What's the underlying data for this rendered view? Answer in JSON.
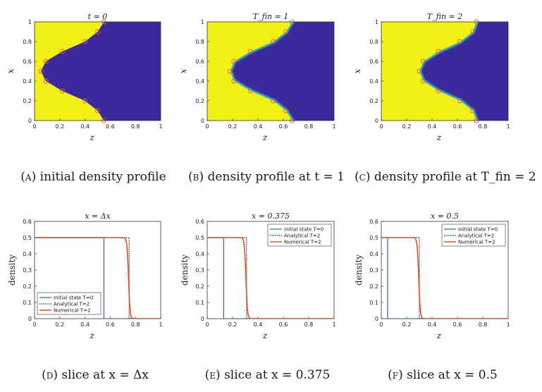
{
  "colors": {
    "yellow": "#f2f016",
    "blue": "#3a2a9c",
    "teal": "#2ec3c8",
    "circle": "#e05a5a",
    "initial": "#1a6fb3",
    "analytical": "#111111",
    "numerical": "#d9531b"
  },
  "captions": [
    {
      "label": "(a)",
      "text": "initial density profile"
    },
    {
      "label": "(b)",
      "text": "density profile at t = 1"
    },
    {
      "label": "(c)",
      "text": "density profile at T_fin = 2"
    },
    {
      "label": "(d)",
      "text": "slice at x = Δx"
    },
    {
      "label": "(e)",
      "text": "slice at x = 0.375"
    },
    {
      "label": "(f)",
      "text": "slice at x = 0.5"
    }
  ],
  "chart_data": [
    {
      "type": "heatmap",
      "title": "t = 0",
      "xlabel": "z",
      "ylabel": "x",
      "xlim": [
        0,
        1
      ],
      "ylim": [
        0,
        1
      ],
      "xticks": [
        "0",
        "0.2",
        "0.4",
        "0.6",
        "0.8",
        "1"
      ],
      "yticks": [
        "0",
        "0.2",
        "0.4",
        "0.6",
        "0.8",
        "1"
      ],
      "interface_shift": 0,
      "smooth": false,
      "interface_points": [
        [
          0.55,
          0
        ],
        [
          0.5,
          0.1
        ],
        [
          0.4,
          0.2
        ],
        [
          0.22,
          0.3
        ],
        [
          0.09,
          0.4
        ],
        [
          0.05,
          0.5
        ],
        [
          0.09,
          0.6
        ],
        [
          0.22,
          0.7
        ],
        [
          0.4,
          0.8
        ],
        [
          0.5,
          0.9
        ],
        [
          0.55,
          1
        ]
      ]
    },
    {
      "type": "heatmap",
      "title": "T_fin = 1",
      "xlabel": "z",
      "ylabel": "x",
      "xlim": [
        0,
        1
      ],
      "ylim": [
        0,
        1
      ],
      "xticks": [
        "0",
        "0.2",
        "0.4",
        "0.6",
        "0.8",
        "1"
      ],
      "yticks": [
        "0",
        "0.2",
        "0.4",
        "0.6",
        "0.8",
        "1"
      ],
      "interface_shift": 0.12,
      "smooth": true,
      "interface_points": [
        [
          0.67,
          0
        ],
        [
          0.62,
          0.1
        ],
        [
          0.52,
          0.2
        ],
        [
          0.34,
          0.3
        ],
        [
          0.21,
          0.4
        ],
        [
          0.18,
          0.5
        ],
        [
          0.21,
          0.6
        ],
        [
          0.34,
          0.7
        ],
        [
          0.52,
          0.8
        ],
        [
          0.62,
          0.9
        ],
        [
          0.67,
          1
        ]
      ]
    },
    {
      "type": "heatmap",
      "title": "T_fin = 2",
      "xlabel": "z",
      "ylabel": "x",
      "xlim": [
        0,
        1
      ],
      "ylim": [
        0,
        1
      ],
      "xticks": [
        "0",
        "0.2",
        "0.4",
        "0.6",
        "0.8",
        "1"
      ],
      "yticks": [
        "0",
        "0.2",
        "0.4",
        "0.6",
        "0.8",
        "1"
      ],
      "interface_shift": 0.25,
      "smooth": true,
      "interface_points": [
        [
          0.75,
          0
        ],
        [
          0.72,
          0.1
        ],
        [
          0.62,
          0.2
        ],
        [
          0.45,
          0.3
        ],
        [
          0.33,
          0.4
        ],
        [
          0.3,
          0.5
        ],
        [
          0.33,
          0.6
        ],
        [
          0.45,
          0.7
        ],
        [
          0.62,
          0.8
        ],
        [
          0.72,
          0.9
        ],
        [
          0.75,
          1
        ]
      ]
    },
    {
      "type": "line",
      "title": "x = Δx",
      "xlabel": "z",
      "ylabel": "density",
      "xlim": [
        0,
        1
      ],
      "ylim": [
        0,
        0.6
      ],
      "xticks": [
        "0",
        "0.2",
        "0.4",
        "0.6",
        "0.8",
        "1"
      ],
      "yticks": [
        "0",
        "0.1",
        "0.2",
        "0.3",
        "0.4",
        "0.5",
        "0.6"
      ],
      "legend": "bottom-left",
      "series": [
        {
          "name": "Initial state T=0",
          "step_at": 0.55,
          "style": "solid",
          "color": "initial"
        },
        {
          "name": "Analytical T=2",
          "step_at": 0.75,
          "style": "dotted",
          "color": "analytical"
        },
        {
          "name": "Numerical T=2",
          "step_at": 0.745,
          "style": "smooth",
          "color": "numerical"
        }
      ]
    },
    {
      "type": "line",
      "title": "x = 0.375",
      "xlabel": "z",
      "ylabel": "density",
      "xlim": [
        0,
        1
      ],
      "ylim": [
        0,
        0.6
      ],
      "xticks": [
        "0",
        "0.2",
        "0.4",
        "0.6",
        "0.8",
        "1"
      ],
      "yticks": [
        "0",
        "0.1",
        "0.2",
        "0.3",
        "0.4",
        "0.5",
        "0.6"
      ],
      "legend": "top-right",
      "series": [
        {
          "name": "Initial state T=0",
          "step_at": 0.13,
          "style": "solid",
          "color": "initial"
        },
        {
          "name": "Analytical T=2",
          "step_at": 0.31,
          "style": "dotted",
          "color": "analytical"
        },
        {
          "name": "Numerical T=2",
          "step_at": 0.305,
          "style": "smooth",
          "color": "numerical"
        }
      ]
    },
    {
      "type": "line",
      "title": "x = 0.5",
      "xlabel": "z",
      "ylabel": "density",
      "xlim": [
        0,
        1
      ],
      "ylim": [
        0,
        0.6
      ],
      "xticks": [
        "0",
        "0.2",
        "0.4",
        "0.6",
        "0.8",
        "1"
      ],
      "yticks": [
        "0",
        "0.1",
        "0.2",
        "0.3",
        "0.4",
        "0.5",
        "0.6"
      ],
      "legend": "top-right",
      "series": [
        {
          "name": "Initial state T=0",
          "step_at": 0.05,
          "style": "solid",
          "color": "initial"
        },
        {
          "name": "Analytical T=2",
          "step_at": 0.3,
          "style": "dotted",
          "color": "analytical"
        },
        {
          "name": "Numerical T=2",
          "step_at": 0.295,
          "style": "smooth",
          "color": "numerical"
        }
      ]
    }
  ]
}
